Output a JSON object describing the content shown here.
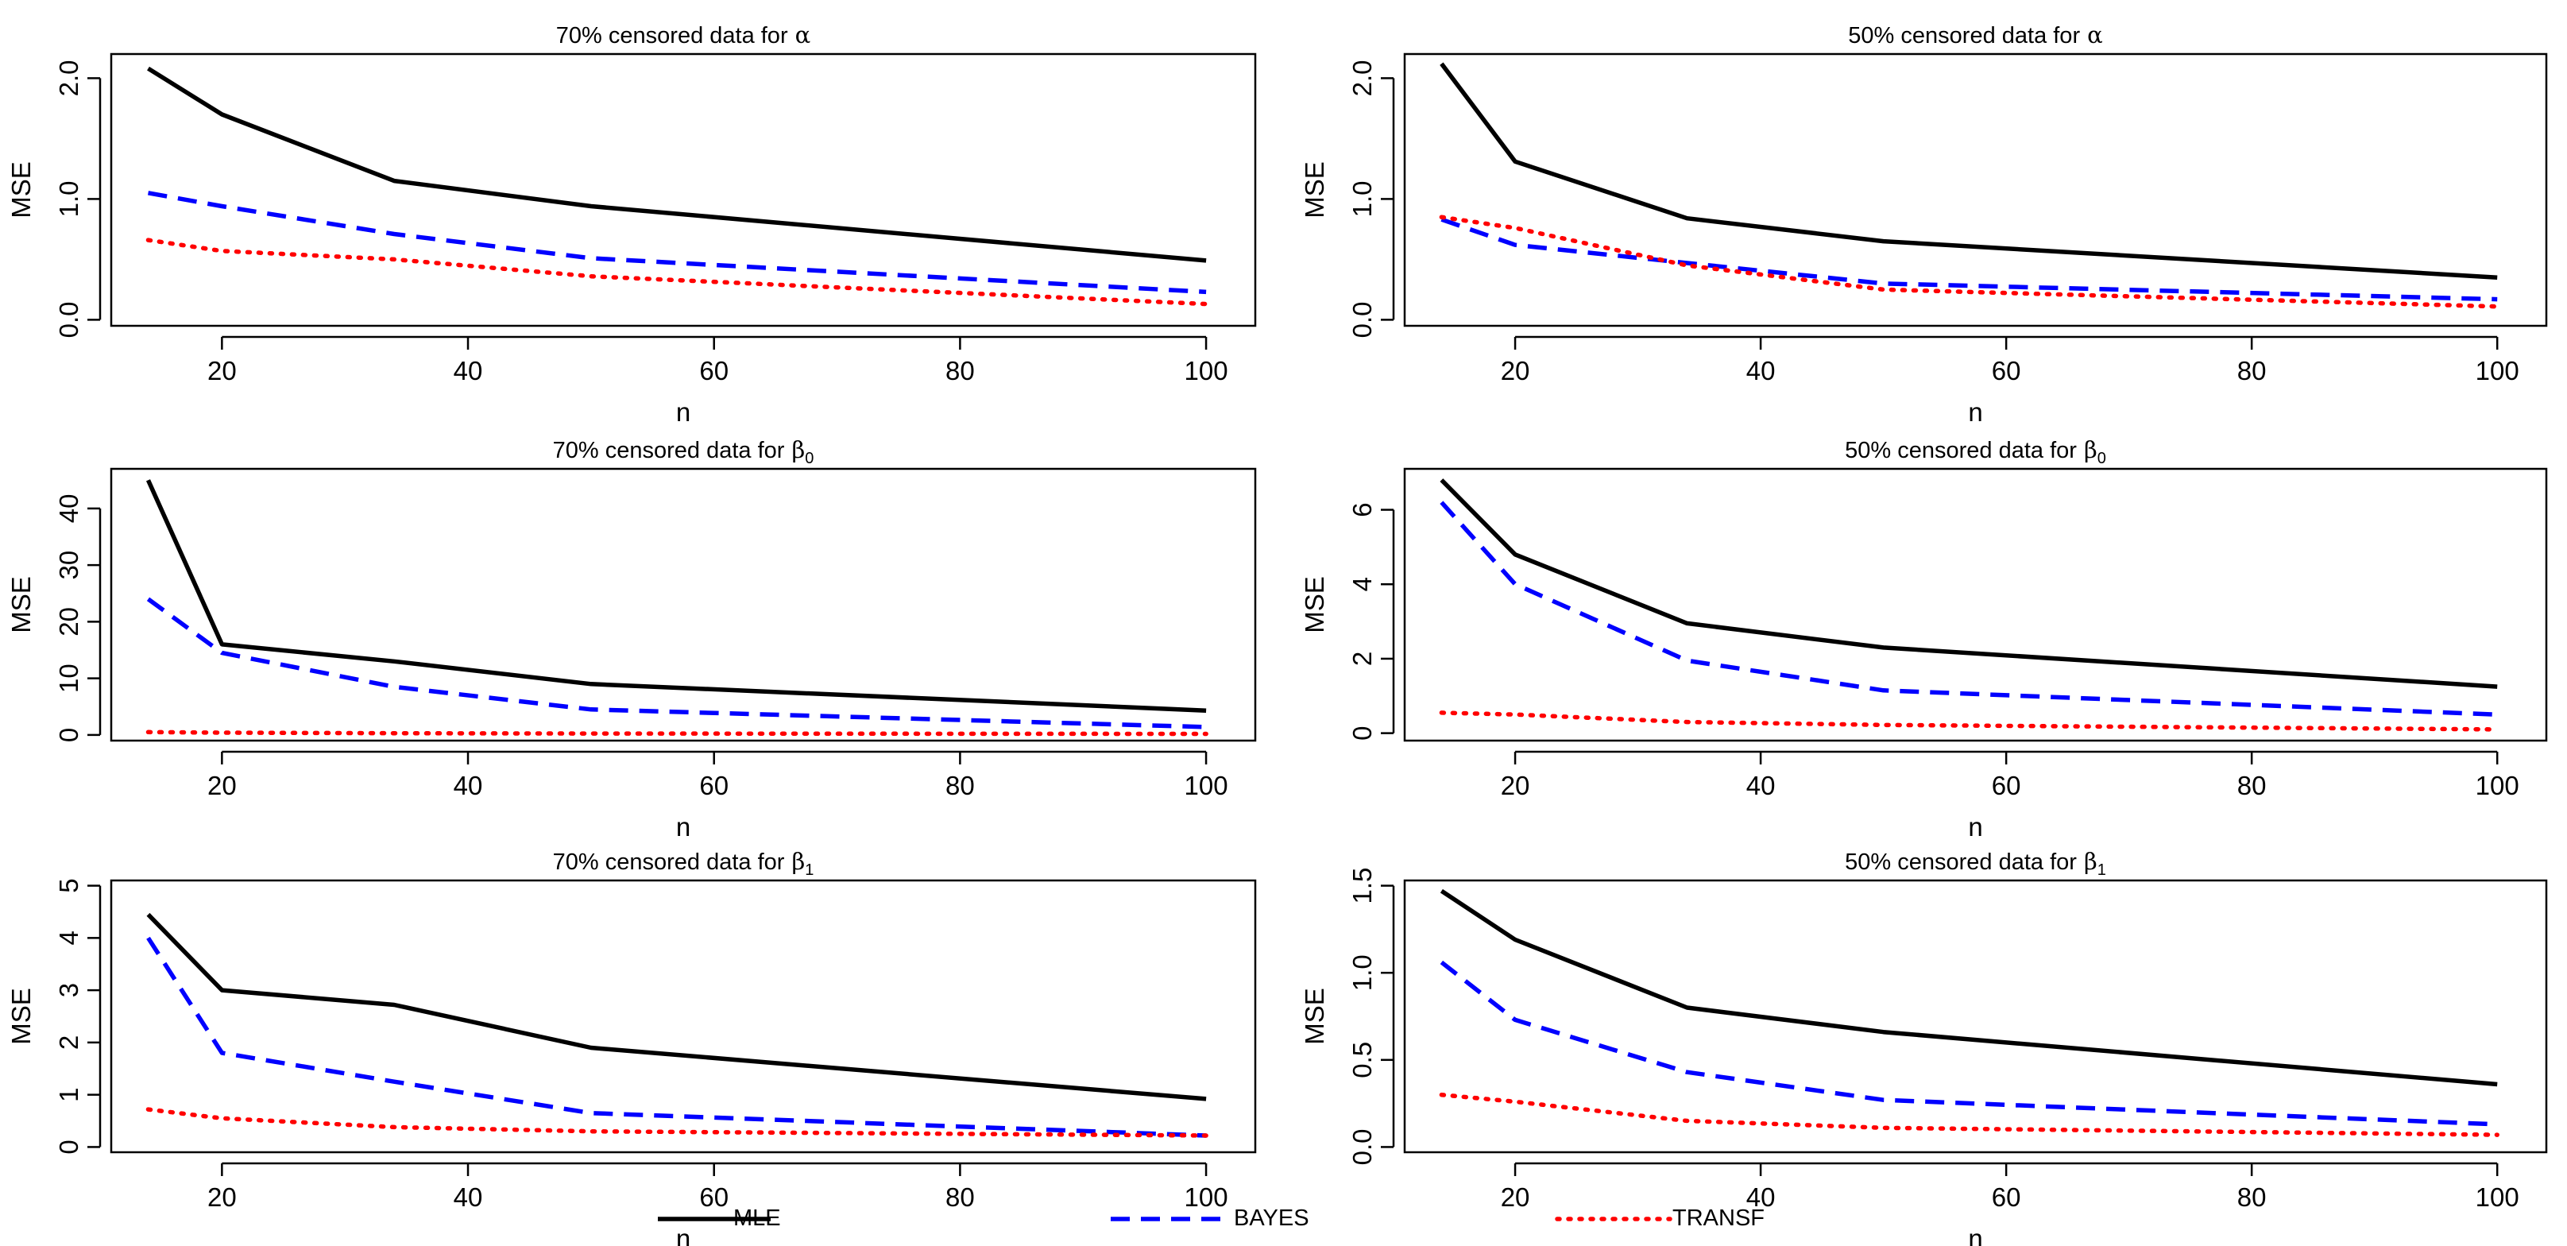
{
  "chart_data": [
    {
      "type": "line",
      "title": "70% censored data for",
      "title_symbol": "α",
      "title_subscript": "",
      "xlabel": "n",
      "ylabel": "MSE",
      "xlim": [
        11,
        104
      ],
      "ylim": [
        -0.05,
        2.2
      ],
      "xticks": [
        20,
        40,
        60,
        80,
        100
      ],
      "xtick_labels": [
        "20",
        "40",
        "60",
        "80",
        "100"
      ],
      "yticks": [
        0,
        1,
        2
      ],
      "ytick_labels": [
        "0.0",
        "1.0",
        "2.0"
      ],
      "x": [
        14,
        20,
        34,
        50,
        100
      ],
      "series": [
        {
          "name": "MLE",
          "values": [
            2.08,
            1.7,
            1.15,
            0.94,
            0.49
          ]
        },
        {
          "name": "BAYES",
          "values": [
            1.05,
            0.94,
            0.71,
            0.51,
            0.23
          ]
        },
        {
          "name": "TRANSF",
          "values": [
            0.66,
            0.57,
            0.5,
            0.36,
            0.13
          ]
        }
      ]
    },
    {
      "type": "line",
      "title": "50% censored data for",
      "title_symbol": "α",
      "title_subscript": "",
      "xlabel": "n",
      "ylabel": "MSE",
      "xlim": [
        11,
        104
      ],
      "ylim": [
        -0.05,
        2.2
      ],
      "xticks": [
        20,
        40,
        60,
        80,
        100
      ],
      "xtick_labels": [
        "20",
        "40",
        "60",
        "80",
        "100"
      ],
      "yticks": [
        0,
        1,
        2
      ],
      "ytick_labels": [
        "0.0",
        "1.0",
        "2.0"
      ],
      "x": [
        14,
        20,
        34,
        50,
        100
      ],
      "series": [
        {
          "name": "MLE",
          "values": [
            2.12,
            1.31,
            0.84,
            0.65,
            0.35
          ]
        },
        {
          "name": "BAYES",
          "values": [
            0.83,
            0.62,
            0.47,
            0.3,
            0.17
          ]
        },
        {
          "name": "TRANSF",
          "values": [
            0.85,
            0.76,
            0.45,
            0.25,
            0.11
          ]
        }
      ]
    },
    {
      "type": "line",
      "title": "70% censored data for",
      "title_symbol": "β",
      "title_subscript": "0",
      "xlabel": "n",
      "ylabel": "MSE",
      "xlim": [
        11,
        104
      ],
      "ylim": [
        -1,
        47
      ],
      "xticks": [
        20,
        40,
        60,
        80,
        100
      ],
      "xtick_labels": [
        "20",
        "40",
        "60",
        "80",
        "100"
      ],
      "yticks": [
        0,
        10,
        20,
        30,
        40
      ],
      "ytick_labels": [
        "0",
        "10",
        "20",
        "30",
        "40"
      ],
      "x": [
        14,
        20,
        34,
        50,
        100
      ],
      "series": [
        {
          "name": "MLE",
          "values": [
            45,
            16,
            13,
            9,
            4.3
          ]
        },
        {
          "name": "BAYES",
          "values": [
            24,
            14.5,
            8.5,
            4.5,
            1.4
          ]
        },
        {
          "name": "TRANSF",
          "values": [
            0.5,
            0.4,
            0.3,
            0.25,
            0.2
          ]
        }
      ]
    },
    {
      "type": "line",
      "title": "50% censored data for",
      "title_symbol": "β",
      "title_subscript": "0",
      "xlabel": "n",
      "ylabel": "MSE",
      "xlim": [
        11,
        104
      ],
      "ylim": [
        -0.2,
        7.1
      ],
      "xticks": [
        20,
        40,
        60,
        80,
        100
      ],
      "xtick_labels": [
        "20",
        "40",
        "60",
        "80",
        "100"
      ],
      "yticks": [
        0,
        2,
        4,
        6
      ],
      "ytick_labels": [
        "0",
        "2",
        "4",
        "6"
      ],
      "x": [
        14,
        20,
        34,
        50,
        100
      ],
      "series": [
        {
          "name": "MLE",
          "values": [
            6.8,
            4.8,
            2.95,
            2.3,
            1.25
          ]
        },
        {
          "name": "BAYES",
          "values": [
            6.2,
            4.0,
            1.95,
            1.15,
            0.5
          ]
        },
        {
          "name": "TRANSF",
          "values": [
            0.55,
            0.5,
            0.3,
            0.22,
            0.1
          ]
        }
      ]
    },
    {
      "type": "line",
      "title": "70% censored data for",
      "title_symbol": "β",
      "title_subscript": "1",
      "xlabel": "n",
      "ylabel": "MSE",
      "xlim": [
        11,
        104
      ],
      "ylim": [
        -0.1,
        5.1
      ],
      "xticks": [
        20,
        40,
        60,
        80,
        100
      ],
      "xtick_labels": [
        "20",
        "40",
        "60",
        "80",
        "100"
      ],
      "yticks": [
        0,
        1,
        2,
        3,
        4,
        5
      ],
      "ytick_labels": [
        "0",
        "1",
        "2",
        "3",
        "4",
        "5"
      ],
      "x": [
        14,
        20,
        34,
        50,
        100
      ],
      "series": [
        {
          "name": "MLE",
          "values": [
            4.45,
            3.0,
            2.72,
            1.9,
            0.92
          ]
        },
        {
          "name": "BAYES",
          "values": [
            4.0,
            1.8,
            1.25,
            0.65,
            0.22
          ]
        },
        {
          "name": "TRANSF",
          "values": [
            0.72,
            0.55,
            0.38,
            0.3,
            0.22
          ]
        }
      ]
    },
    {
      "type": "line",
      "title": "50% censored data for",
      "title_symbol": "β",
      "title_subscript": "1",
      "xlabel": "n",
      "ylabel": "MSE",
      "xlim": [
        11,
        104
      ],
      "ylim": [
        -0.03,
        1.53
      ],
      "xticks": [
        20,
        40,
        60,
        80,
        100
      ],
      "xtick_labels": [
        "20",
        "40",
        "60",
        "80",
        "100"
      ],
      "yticks": [
        0,
        0.5,
        1,
        1.5
      ],
      "ytick_labels": [
        "0.0",
        "0.5",
        "1.0",
        "1.5"
      ],
      "x": [
        14,
        20,
        34,
        50,
        100
      ],
      "series": [
        {
          "name": "MLE",
          "values": [
            1.47,
            1.19,
            0.8,
            0.66,
            0.36
          ]
        },
        {
          "name": "BAYES",
          "values": [
            1.06,
            0.73,
            0.43,
            0.27,
            0.13
          ]
        },
        {
          "name": "TRANSF",
          "values": [
            0.3,
            0.26,
            0.15,
            0.11,
            0.07
          ]
        }
      ]
    }
  ],
  "legend": {
    "items": [
      {
        "label": "MLE",
        "color": "#000000",
        "style": "solid"
      },
      {
        "label": "BAYES",
        "color": "#0000ff",
        "style": "dashed"
      },
      {
        "label": "TRANSF",
        "color": "#ff0000",
        "style": "dotted"
      }
    ]
  },
  "series_styles": {
    "MLE": {
      "color": "#000000",
      "style": "solid"
    },
    "BAYES": {
      "color": "#0000ff",
      "style": "dashed"
    },
    "TRANSF": {
      "color": "#ff0000",
      "style": "dotted"
    }
  }
}
